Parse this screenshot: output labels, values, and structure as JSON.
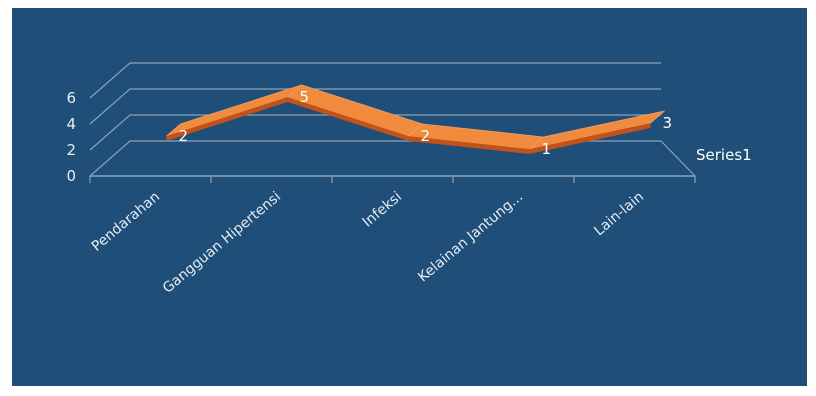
{
  "chart_data": {
    "type": "line",
    "subtype": "3d-line",
    "categories": [
      "Pendarahan",
      "Gangguan Hipertensi",
      "Infeksi",
      "Kelainan Jantung...",
      "Lain-lain"
    ],
    "series": [
      {
        "name": "Series1",
        "values": [
          2,
          5,
          2,
          1,
          3
        ]
      }
    ],
    "yticks": [
      "0",
      "2",
      "4",
      "6"
    ],
    "ylim": [
      0,
      6
    ],
    "data_labels": true,
    "grid": true,
    "legend_position": "right",
    "colors": {
      "background": "#1f4e79",
      "ribbon_top": "#f08a3c",
      "ribbon_front": "#c0521a",
      "grid": "#8ea3b8",
      "text": "#e6ecf3"
    }
  }
}
